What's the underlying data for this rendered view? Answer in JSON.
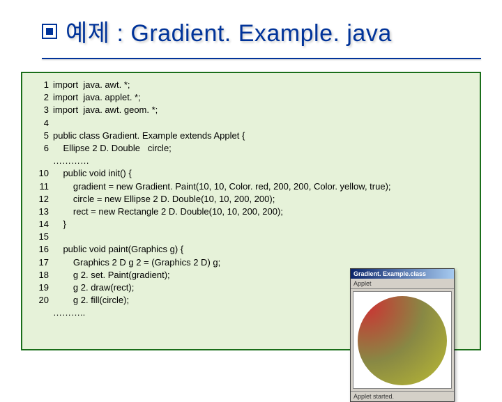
{
  "title": "예제 : Gradient. Example. java",
  "title_color": "#003399",
  "code_bg": "#e6f2d9",
  "code_border": "#1a6e1a",
  "code": {
    "lines": [
      {
        "n": "1",
        "t": "import  java. awt. *;"
      },
      {
        "n": "2",
        "t": "import  java. applet. *;"
      },
      {
        "n": "3",
        "t": "import  java. awt. geom. *;"
      },
      {
        "n": "4",
        "t": ""
      },
      {
        "n": "5",
        "t": "public class Gradient. Example extends Applet {"
      },
      {
        "n": "6",
        "t": "    Ellipse 2 D. Double   circle;"
      },
      {
        "n": "",
        "t": "…………"
      },
      {
        "n": "10",
        "t": "    public void init() {"
      },
      {
        "n": "11",
        "t": "        gradient = new Gradient. Paint(10, 10, Color. red, 200, 200, Color. yellow, true);"
      },
      {
        "n": "12",
        "t": "        circle = new Ellipse 2 D. Double(10, 10, 200, 200);"
      },
      {
        "n": "13",
        "t": "        rect = new Rectangle 2 D. Double(10, 10, 200, 200);"
      },
      {
        "n": "14",
        "t": "    }"
      },
      {
        "n": "15",
        "t": ""
      },
      {
        "n": "16",
        "t": "    public void paint(Graphics g) {"
      },
      {
        "n": "17",
        "t": "        Graphics 2 D g 2 = (Graphics 2 D) g;"
      },
      {
        "n": "18",
        "t": "        g 2. set. Paint(gradient);"
      },
      {
        "n": "19",
        "t": "        g 2. draw(rect);"
      },
      {
        "n": "20",
        "t": "        g 2. fill(circle);"
      },
      {
        "n": "",
        "t": "……….."
      }
    ]
  },
  "applet": {
    "title": "Gradient. Example.class",
    "menu": "Applet",
    "status": "Applet started.",
    "gradient_from": "#cc3333",
    "gradient_to": "#cccc33",
    "window_bg": "#d4d0c8"
  }
}
